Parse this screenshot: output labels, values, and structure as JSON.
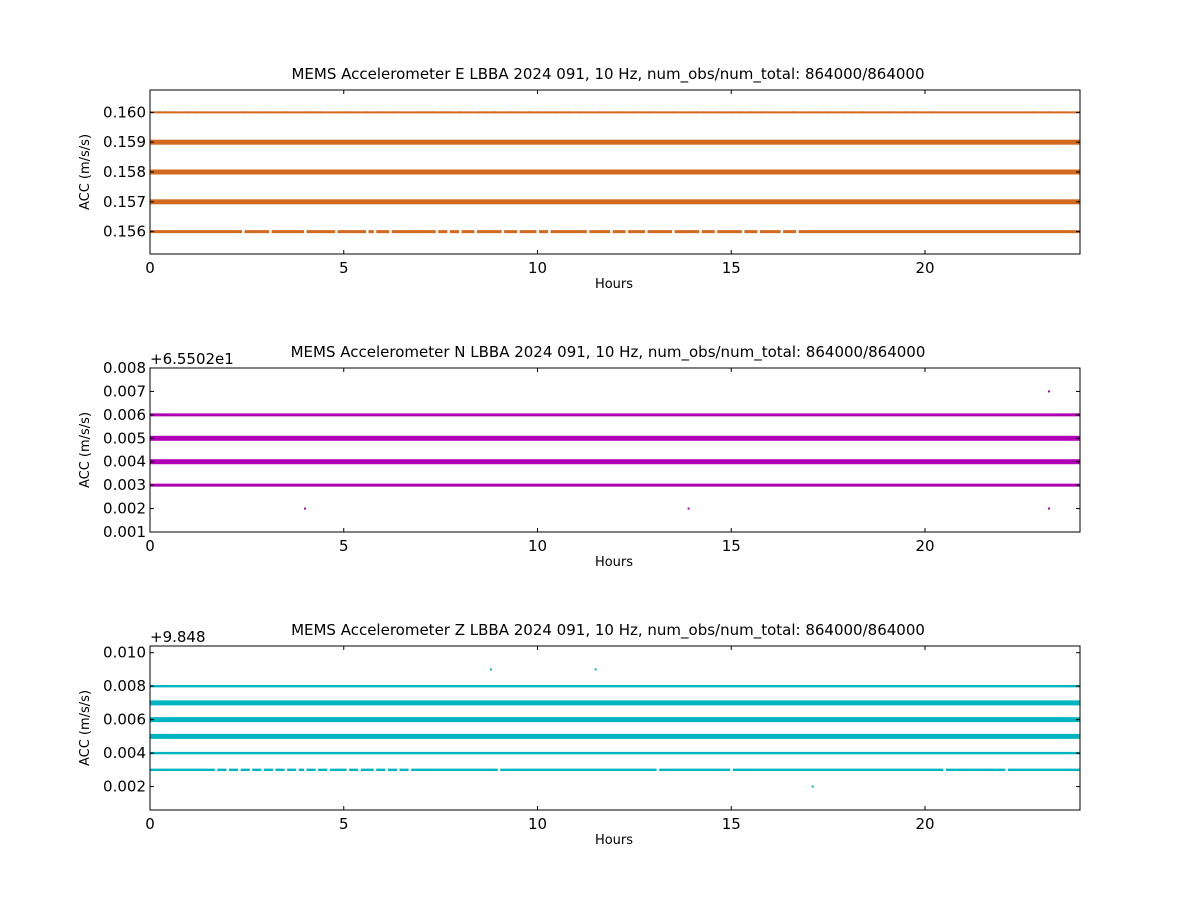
{
  "chart_data": [
    {
      "type": "scatter",
      "title": "MEMS Accelerometer E LBBA 2024 091, 10 Hz, num_obs/num_total: 864000/864000",
      "xlabel": "Hours",
      "ylabel": "ACC (m/s/s)",
      "offset_label": "",
      "color": "#d2691e",
      "xlim": [
        0,
        24
      ],
      "ylim": [
        0.15525,
        0.16075
      ],
      "x_ticks": [
        0,
        5,
        10,
        15,
        20
      ],
      "y_ticks": [
        "0.156",
        "0.157",
        "0.158",
        "0.159",
        "0.160"
      ],
      "levels": [
        {
          "y": 0.16,
          "coverage": "sparse"
        },
        {
          "y": 0.159,
          "coverage": "dense"
        },
        {
          "y": 0.158,
          "coverage": "dense"
        },
        {
          "y": 0.157,
          "coverage": "dense"
        },
        {
          "y": 0.156,
          "coverage": "medium"
        }
      ],
      "points_x": {
        "0.160": [
          0.25,
          0.4,
          0.6,
          1.0,
          1.2,
          1.35,
          2.4,
          2.8,
          3.1,
          3.5,
          4.1,
          4.2,
          4.4,
          5.0,
          5.1,
          5.6,
          5.9,
          6.3,
          7.0,
          7.2,
          7.3,
          7.6,
          7.7,
          8.0,
          8.5,
          8.7,
          8.9,
          9.3,
          9.5,
          9.8,
          10.0,
          10.3,
          10.5,
          10.8,
          11.1,
          11.6,
          12.2,
          12.5,
          12.9,
          13.2,
          13.5,
          14.1,
          14.3,
          14.7,
          15.0,
          15.2,
          15.5,
          15.8,
          16.1,
          16.6,
          17.2,
          17.5,
          17.9,
          18.1,
          18.4,
          19.1,
          19.5,
          19.7,
          20.2,
          22.8,
          23.2,
          23.6
        ]
      },
      "gaps_x": {
        "0.156": [
          2.4,
          3.1,
          4.0,
          4.8,
          5.6,
          5.8,
          6.2,
          7.4,
          7.7,
          8.0,
          8.4,
          9.1,
          9.5,
          10.0,
          10.3,
          11.3,
          11.9,
          12.3,
          12.8,
          13.5,
          14.2,
          14.6,
          15.3,
          15.7,
          16.3,
          16.7
        ]
      }
    },
    {
      "type": "scatter",
      "title": "MEMS Accelerometer N LBBA 2024 091, 10 Hz, num_obs/num_total: 864000/864000",
      "xlabel": "Hours",
      "ylabel": "ACC (m/s/s)",
      "offset_label": "+6.5502e1",
      "color": "#b000b5",
      "xlim": [
        0,
        24
      ],
      "ylim": [
        0.001,
        0.008
      ],
      "x_ticks": [
        0,
        5,
        10,
        15,
        20
      ],
      "y_ticks": [
        "0.001",
        "0.002",
        "0.003",
        "0.004",
        "0.005",
        "0.006",
        "0.007",
        "0.008"
      ],
      "levels": [
        {
          "y": 0.006,
          "coverage": "medium"
        },
        {
          "y": 0.005,
          "coverage": "dense"
        },
        {
          "y": 0.004,
          "coverage": "dense"
        },
        {
          "y": 0.003,
          "coverage": "medium"
        }
      ],
      "points_x": {
        "0.007": [
          23.2
        ],
        "0.002": [
          4.0,
          13.9,
          23.2
        ]
      },
      "gaps_x": {}
    },
    {
      "type": "scatter",
      "title": "MEMS Accelerometer Z LBBA 2024 091, 10 Hz, num_obs/num_total: 864000/864000",
      "xlabel": "Hours",
      "ylabel": "ACC (m/s/s)",
      "offset_label": "+9.848",
      "color": "#00b5c0",
      "xlim": [
        0,
        24
      ],
      "ylim": [
        0.0006,
        0.0104
      ],
      "x_ticks": [
        0,
        5,
        10,
        15,
        20
      ],
      "y_ticks": [
        "0.002",
        "0.004",
        "0.006",
        "0.008",
        "0.010"
      ],
      "levels": [
        {
          "y": 0.008,
          "coverage": "thin"
        },
        {
          "y": 0.007,
          "coverage": "dense"
        },
        {
          "y": 0.006,
          "coverage": "dense"
        },
        {
          "y": 0.005,
          "coverage": "dense"
        },
        {
          "y": 0.004,
          "coverage": "thin"
        },
        {
          "y": 0.003,
          "coverage": "thin"
        }
      ],
      "points_x": {
        "0.009": [
          8.8,
          11.5
        ],
        "0.002": [
          17.1
        ]
      },
      "gaps_x": {
        "0.003": [
          1.7,
          2.0,
          2.3,
          2.6,
          2.9,
          3.2,
          3.5,
          3.8,
          4.0,
          4.3,
          4.6,
          5.1,
          5.4,
          5.8,
          6.1,
          6.4,
          6.7,
          9.0,
          13.1,
          15.0,
          20.5,
          22.1
        ]
      }
    }
  ]
}
